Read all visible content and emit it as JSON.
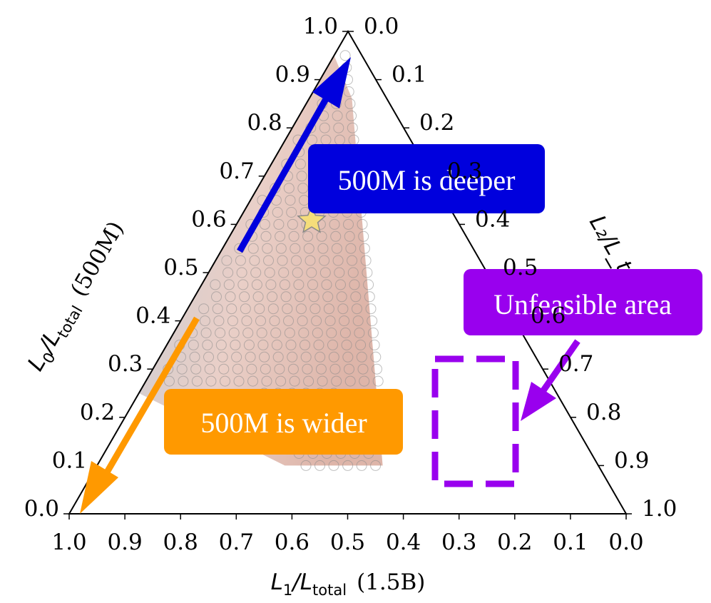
{
  "chart_data": {
    "type": "scatter",
    "subtype": "ternary",
    "axes": {
      "bottom": {
        "label_var": "L",
        "label_sub1": "1",
        "label_var2": "L",
        "label_sub2": "total",
        "label_suffix": "(1.5B)",
        "ticks": [
          "1.0",
          "0.9",
          "0.8",
          "0.7",
          "0.6",
          "0.5",
          "0.4",
          "0.3",
          "0.2",
          "0.1",
          "0.0"
        ]
      },
      "left": {
        "label_var": "L",
        "label_sub1": "0",
        "label_var2": "L",
        "label_sub2": "total",
        "label_suffix": "(500M)",
        "ticks": [
          "0.0",
          "0.1",
          "0.2",
          "0.3",
          "0.4",
          "0.5",
          "0.6",
          "0.7",
          "0.8",
          "0.9",
          "1.0"
        ]
      },
      "right": {
        "label_visible": "L₂/L_tot",
        "ticks": [
          "0.0",
          "0.1",
          "0.2",
          "0.3",
          "0.4",
          "0.5",
          "0.6",
          "0.7",
          "0.8",
          "0.9",
          "1.0"
        ]
      },
      "range": [
        0,
        1
      ]
    },
    "feasible_region": {
      "L0_range": [
        0.1,
        0.95
      ],
      "L1_max_at_L0_0_1": 0.55,
      "L1_min_at_L0_0_1": 0.4,
      "color_low_L0": "#d8a89a",
      "color_high_L0": "#b8d4e6"
    },
    "best_point": {
      "L0": 0.61,
      "L1": 0.3,
      "L2": 0.09,
      "marker": "star",
      "color": "#f5dd7a"
    },
    "grid_step": 0.025,
    "grid": false,
    "annotations": [
      {
        "id": "deeper",
        "text": "500M is deeper",
        "color": "#0000dd"
      },
      {
        "id": "wider",
        "text": "500M is wider",
        "color": "#ff9900"
      },
      {
        "id": "unfeasible",
        "text": "Unfeasible area",
        "color": "#9900ee"
      }
    ]
  }
}
